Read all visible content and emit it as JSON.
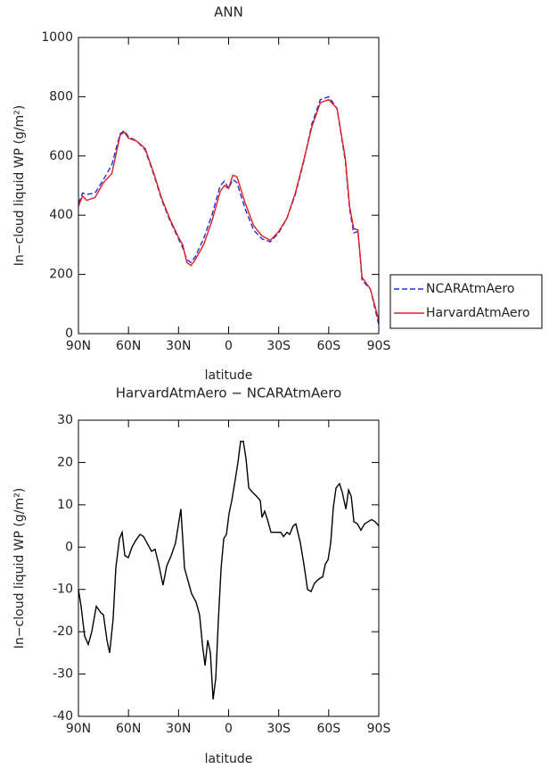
{
  "chart_data": [
    {
      "type": "line",
      "title": "ANN",
      "xlabel": "latitude",
      "ylabel": "In−cloud liquid WP (g/m²)",
      "x": [
        90,
        87.5,
        85,
        80,
        75,
        70,
        65,
        62.5,
        60,
        55,
        50,
        45,
        40,
        35,
        30,
        27.5,
        25,
        22.5,
        20,
        15,
        10,
        5,
        2.5,
        0,
        -2.5,
        -5,
        -10,
        -15,
        -20,
        -25,
        -30,
        -35,
        -40,
        -45,
        -50,
        -55,
        -60,
        -65,
        -70,
        -72.5,
        -75,
        -77.5,
        -80,
        -85,
        -90
      ],
      "series": [
        {
          "name": "NCARAtmAero",
          "color": "#1f2ee0",
          "dash": true,
          "values": [
            440,
            475,
            470,
            475,
            520,
            570,
            675,
            685,
            665,
            650,
            620,
            540,
            450,
            380,
            320,
            290,
            250,
            240,
            260,
            320,
            400,
            500,
            515,
            490,
            520,
            510,
            420,
            350,
            320,
            310,
            340,
            390,
            470,
            580,
            710,
            790,
            800,
            760,
            580,
            420,
            340,
            345,
            180,
            150,
            30
          ]
        },
        {
          "name": "HarvardAtmAero",
          "color": "#e01f1f",
          "dash": false,
          "values": [
            430,
            465,
            450,
            460,
            510,
            540,
            670,
            680,
            660,
            650,
            625,
            545,
            455,
            385,
            325,
            300,
            240,
            230,
            250,
            300,
            380,
            480,
            500,
            490,
            535,
            530,
            440,
            365,
            330,
            315,
            345,
            390,
            475,
            585,
            700,
            780,
            790,
            760,
            590,
            430,
            355,
            350,
            190,
            150,
            45
          ]
        }
      ],
      "xlim": [
        90,
        -90
      ],
      "xticks": [
        {
          "value": 90,
          "label": "90N"
        },
        {
          "value": 60,
          "label": "60N"
        },
        {
          "value": 30,
          "label": "30N"
        },
        0,
        {
          "value": -30,
          "label": "30S"
        },
        {
          "value": -60,
          "label": "60S"
        },
        {
          "value": -90,
          "label": "90S"
        }
      ],
      "ylim": [
        0,
        1000
      ],
      "yticks": [
        0,
        200,
        400,
        600,
        800,
        1000
      ],
      "legend": "right"
    },
    {
      "type": "line",
      "title": "HarvardAtmAero − NCARAtmAero",
      "xlabel": "latitude",
      "ylabel": "In−cloud liquid WP (g/m²)",
      "x": [
        90,
        88.4,
        86.3,
        84.1,
        82,
        79.3,
        76.6,
        75,
        72.9,
        71.3,
        69.2,
        67.6,
        65.4,
        63.8,
        62.2,
        60.1,
        57.9,
        55.8,
        53.1,
        51,
        48.9,
        46.2,
        44.1,
        41.9,
        39.3,
        37.1,
        34.4,
        31.8,
        30.2,
        28.6,
        26.4,
        24.3,
        22.2,
        19.5,
        17.4,
        15.7,
        14.1,
        12.5,
        10.9,
        9.3,
        7.7,
        6.1,
        4.5,
        2.9,
        1.3,
        -0.3,
        -1.9,
        -4,
        -5.6,
        -7.2,
        -8.8,
        -10.4,
        -12.1,
        -14.2,
        -16.8,
        -19,
        -20,
        -21.6,
        -23.3,
        -25.4,
        -27.5,
        -29.7,
        -31.3,
        -32.9,
        -35,
        -36.6,
        -38.7,
        -40.3,
        -43,
        -45.1,
        -47.3,
        -49.4,
        -51.5,
        -54.2,
        -56.4,
        -58,
        -59.6,
        -61.2,
        -62.8,
        -64.4,
        -66.5,
        -68.1,
        -70.3,
        -71.9,
        -73.5,
        -75.1,
        -77.2,
        -79.3,
        -81.5,
        -83.6,
        -85.7,
        -87.8,
        -90
      ],
      "series": [
        {
          "name": "HarvardAtmAero − NCARAtmAero",
          "color": "#000000",
          "dash": false,
          "values": [
            -10,
            -14,
            -21,
            -23,
            -20,
            -14,
            -15.5,
            -16,
            -22,
            -25,
            -17,
            -5,
            2,
            3.5,
            -2,
            -2.5,
            0,
            1.5,
            3,
            2.5,
            1,
            -1,
            -0.5,
            -4,
            -9,
            -4.5,
            -2,
            1,
            5,
            9,
            -5,
            -8,
            -11,
            -13,
            -16,
            -23,
            -28,
            -22,
            -25,
            -36,
            -31,
            -17,
            -5,
            2,
            3,
            8,
            11,
            16,
            20,
            25,
            25,
            21,
            14,
            13,
            12,
            11,
            7,
            8.5,
            6.5,
            3.5,
            3.5,
            3.5,
            3.5,
            2.5,
            3.5,
            3,
            5,
            5.5,
            1,
            -4,
            -10,
            -10.5,
            -8.5,
            -7.5,
            -7,
            -4,
            -3,
            1,
            9.5,
            14,
            15,
            13,
            9,
            13.5,
            12,
            6,
            5.5,
            4,
            5.5,
            6,
            6.5,
            6,
            5
          ]
        }
      ],
      "xlim": [
        90,
        -90
      ],
      "xticks": [
        {
          "value": 90,
          "label": "90N"
        },
        {
          "value": 60,
          "label": "60N"
        },
        {
          "value": 30,
          "label": "30N"
        },
        0,
        {
          "value": -30,
          "label": "30S"
        },
        {
          "value": -60,
          "label": "60S"
        },
        {
          "value": -90,
          "label": "90S"
        }
      ],
      "ylim": [
        -40,
        30
      ],
      "yticks": [
        -40,
        -30,
        -20,
        -10,
        0,
        10,
        20,
        30
      ]
    }
  ]
}
